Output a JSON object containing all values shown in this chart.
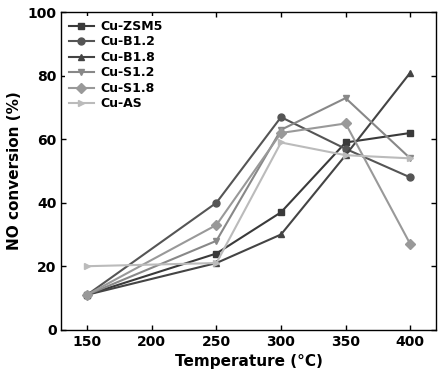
{
  "x": [
    150,
    250,
    300,
    350,
    400
  ],
  "series": [
    {
      "label": "Cu-ZSM5",
      "values": [
        11,
        24,
        37,
        59,
        62
      ],
      "color": "#3a3a3a",
      "marker": "s",
      "linestyle": "-"
    },
    {
      "label": "Cu-B1.2",
      "values": [
        11,
        40,
        67,
        57,
        48
      ],
      "color": "#555555",
      "marker": "o",
      "linestyle": "-"
    },
    {
      "label": "Cu-B1.8",
      "values": [
        11,
        21,
        30,
        55,
        81
      ],
      "color": "#444444",
      "marker": "^",
      "linestyle": "-"
    },
    {
      "label": "Cu-S1.2",
      "values": [
        11,
        28,
        63,
        73,
        54
      ],
      "color": "#888888",
      "marker": "v",
      "linestyle": "-"
    },
    {
      "label": "Cu-S1.8",
      "values": [
        11,
        33,
        62,
        65,
        27
      ],
      "color": "#999999",
      "marker": "D",
      "linestyle": "-"
    },
    {
      "label": "Cu-AS",
      "values": [
        20,
        21,
        59,
        55,
        54
      ],
      "color": "#bbbbbb",
      "marker": ">",
      "linestyle": "-"
    }
  ],
  "xlabel": "Temperature (°C)",
  "ylabel": "NO conversion (%)",
  "xlim": [
    130,
    420
  ],
  "ylim": [
    0,
    100
  ],
  "xticks": [
    150,
    200,
    250,
    300,
    350,
    400
  ],
  "yticks": [
    0,
    20,
    40,
    60,
    80,
    100
  ],
  "legend_loc": "upper left",
  "title": "",
  "figsize": [
    4.43,
    3.76
  ],
  "dpi": 100
}
